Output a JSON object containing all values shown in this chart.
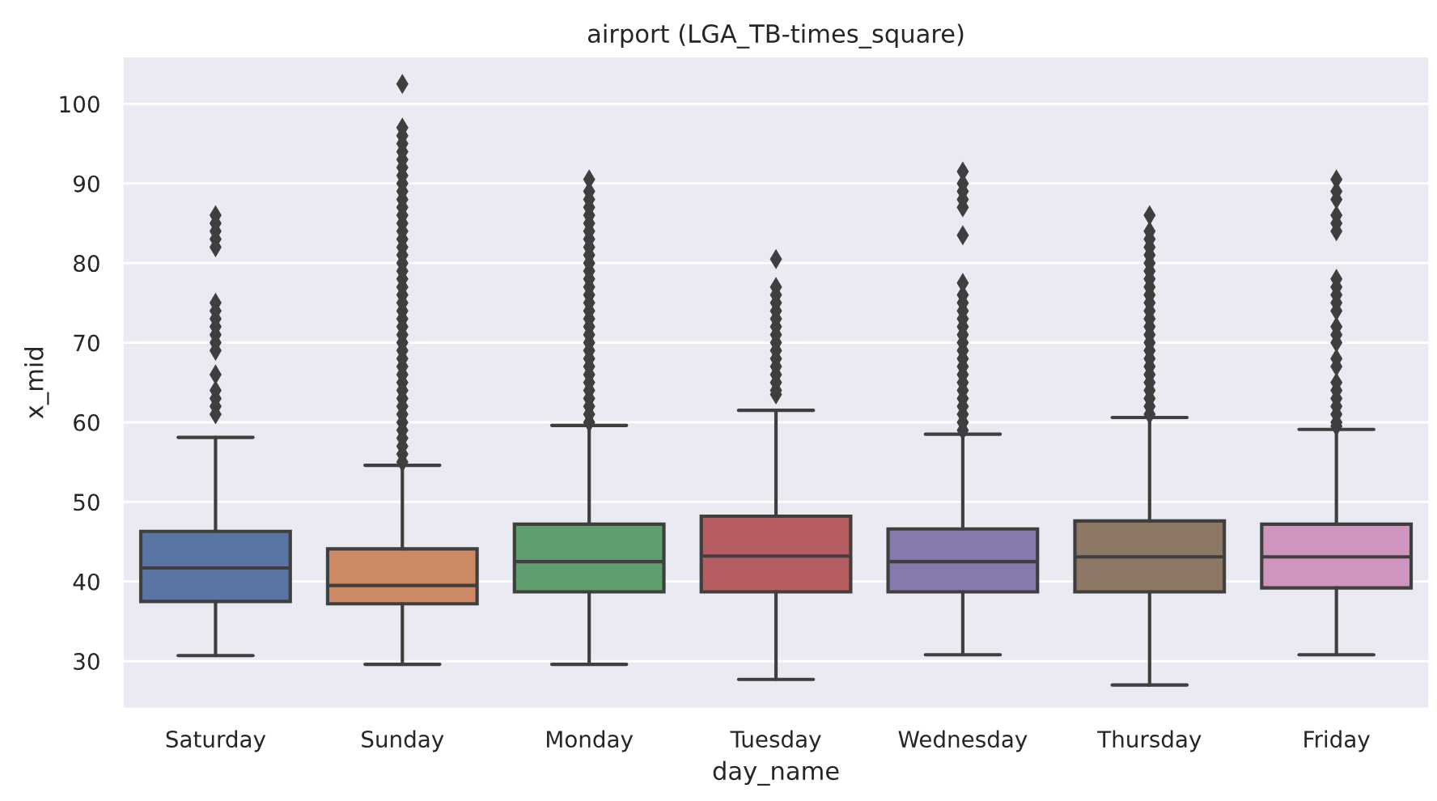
{
  "chart_data": {
    "type": "box",
    "title": "airport (LGA_TB-times_square)",
    "xlabel": "day_name",
    "ylabel": "x_mid",
    "categories": [
      "Saturday",
      "Sunday",
      "Monday",
      "Tuesday",
      "Wednesday",
      "Thursday",
      "Friday"
    ],
    "colors": [
      "#5975a4",
      "#cc8963",
      "#5f9e6e",
      "#b55d60",
      "#857aab",
      "#8d7866",
      "#d095bf"
    ],
    "boxes": [
      {
        "low": 30.7,
        "q1": 37.5,
        "median": 41.7,
        "q3": 46.3,
        "high": 58.1,
        "outliers": [
          61,
          62,
          63,
          64,
          66,
          69,
          70,
          71,
          72,
          73,
          74,
          75,
          82,
          83,
          84,
          85,
          86
        ]
      },
      {
        "low": 29.6,
        "q1": 37.2,
        "median": 39.5,
        "q3": 44.1,
        "high": 54.6,
        "outliers": [
          55,
          56,
          57,
          58,
          59,
          60,
          61,
          62,
          63,
          64,
          65,
          66,
          67,
          68,
          69,
          70,
          71,
          72,
          73,
          74,
          75,
          76,
          77,
          78,
          79,
          80,
          81,
          82,
          83,
          84,
          85,
          86,
          87,
          88,
          89,
          90,
          91,
          92,
          93,
          94,
          95,
          96,
          97,
          102.5
        ]
      },
      {
        "low": 29.6,
        "q1": 38.7,
        "median": 42.5,
        "q3": 47.2,
        "high": 59.6,
        "outliers": [
          60,
          61,
          62,
          63,
          64,
          65,
          66,
          67,
          68,
          69,
          70,
          71,
          72,
          73,
          74,
          75,
          76,
          77,
          78,
          79,
          80,
          81,
          82,
          83,
          84,
          85,
          86,
          87,
          88,
          89,
          90.5
        ]
      },
      {
        "low": 27.7,
        "q1": 38.7,
        "median": 43.2,
        "q3": 48.2,
        "high": 61.5,
        "outliers": [
          63.5,
          64,
          65,
          66,
          67,
          68,
          69,
          70,
          71,
          72,
          73,
          74,
          75,
          76,
          77,
          80.5
        ]
      },
      {
        "low": 30.8,
        "q1": 38.7,
        "median": 42.5,
        "q3": 46.6,
        "high": 58.5,
        "outliers": [
          59,
          60,
          61,
          62,
          63,
          64,
          65,
          66,
          67,
          68,
          69,
          70,
          71,
          72,
          73,
          74,
          75,
          76,
          77.5,
          83.5,
          87,
          88,
          89,
          90,
          91.5
        ]
      },
      {
        "low": 27.0,
        "q1": 38.7,
        "median": 43.1,
        "q3": 47.6,
        "high": 60.6,
        "outliers": [
          61,
          62,
          63,
          64,
          65,
          66,
          67,
          68,
          69,
          70,
          71,
          72,
          73,
          74,
          75,
          76,
          77,
          78,
          79,
          80,
          81,
          82,
          83,
          84,
          86
        ]
      },
      {
        "low": 30.8,
        "q1": 39.2,
        "median": 43.1,
        "q3": 47.2,
        "high": 59.1,
        "outliers": [
          59.5,
          60,
          61,
          62,
          63,
          64,
          65,
          67,
          68,
          70,
          71,
          72,
          74,
          75,
          76,
          77,
          78,
          84,
          85,
          86,
          88,
          89,
          90.5
        ]
      }
    ],
    "ylim": [
      24,
      106
    ],
    "yticks": [
      30,
      40,
      50,
      60,
      70,
      80,
      90,
      100
    ],
    "grid": "y"
  }
}
